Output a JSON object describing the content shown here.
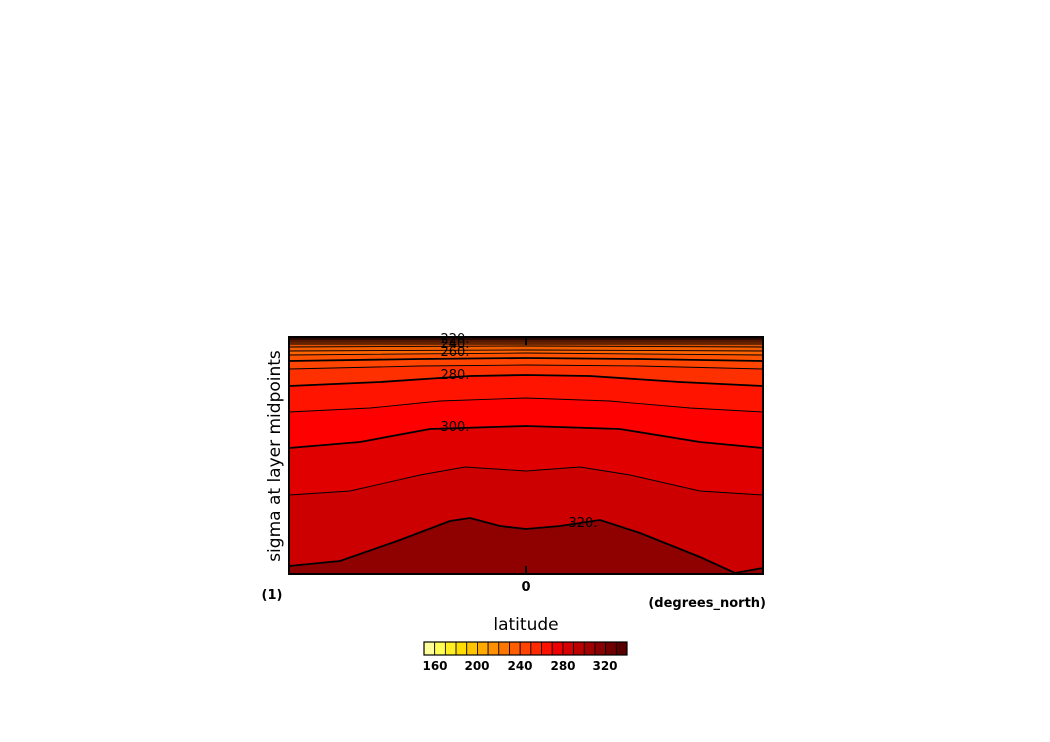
{
  "chart_data": {
    "type": "heatmap",
    "plot_kind": "filled-contour latitude-sigma cross section",
    "xlabel": "latitude",
    "x_units": "(degrees_north)",
    "ylabel": "sigma at layer midpoints",
    "y_units": "(1)",
    "x_ticks": [
      "0"
    ],
    "contour_labels": [
      "220.",
      "240.",
      "260.",
      "280.",
      "300.",
      "320."
    ],
    "colorbar": {
      "tick_labels": [
        "160",
        "200",
        "240",
        "280",
        "320"
      ],
      "colors": [
        "#ffff99",
        "#ffff55",
        "#ffee22",
        "#ffdd00",
        "#ffc400",
        "#ffaa00",
        "#ff9000",
        "#ff7700",
        "#ff5e00",
        "#ff4400",
        "#ff2a00",
        "#ff1100",
        "#ee0000",
        "#d60000",
        "#bb0000",
        "#a00000",
        "#880000",
        "#700000",
        "#580000"
      ]
    },
    "contour_levels": [
      160,
      170,
      180,
      190,
      200,
      210,
      220,
      230,
      240,
      250,
      260,
      270,
      280,
      290,
      300,
      310,
      320
    ],
    "grid": false
  }
}
